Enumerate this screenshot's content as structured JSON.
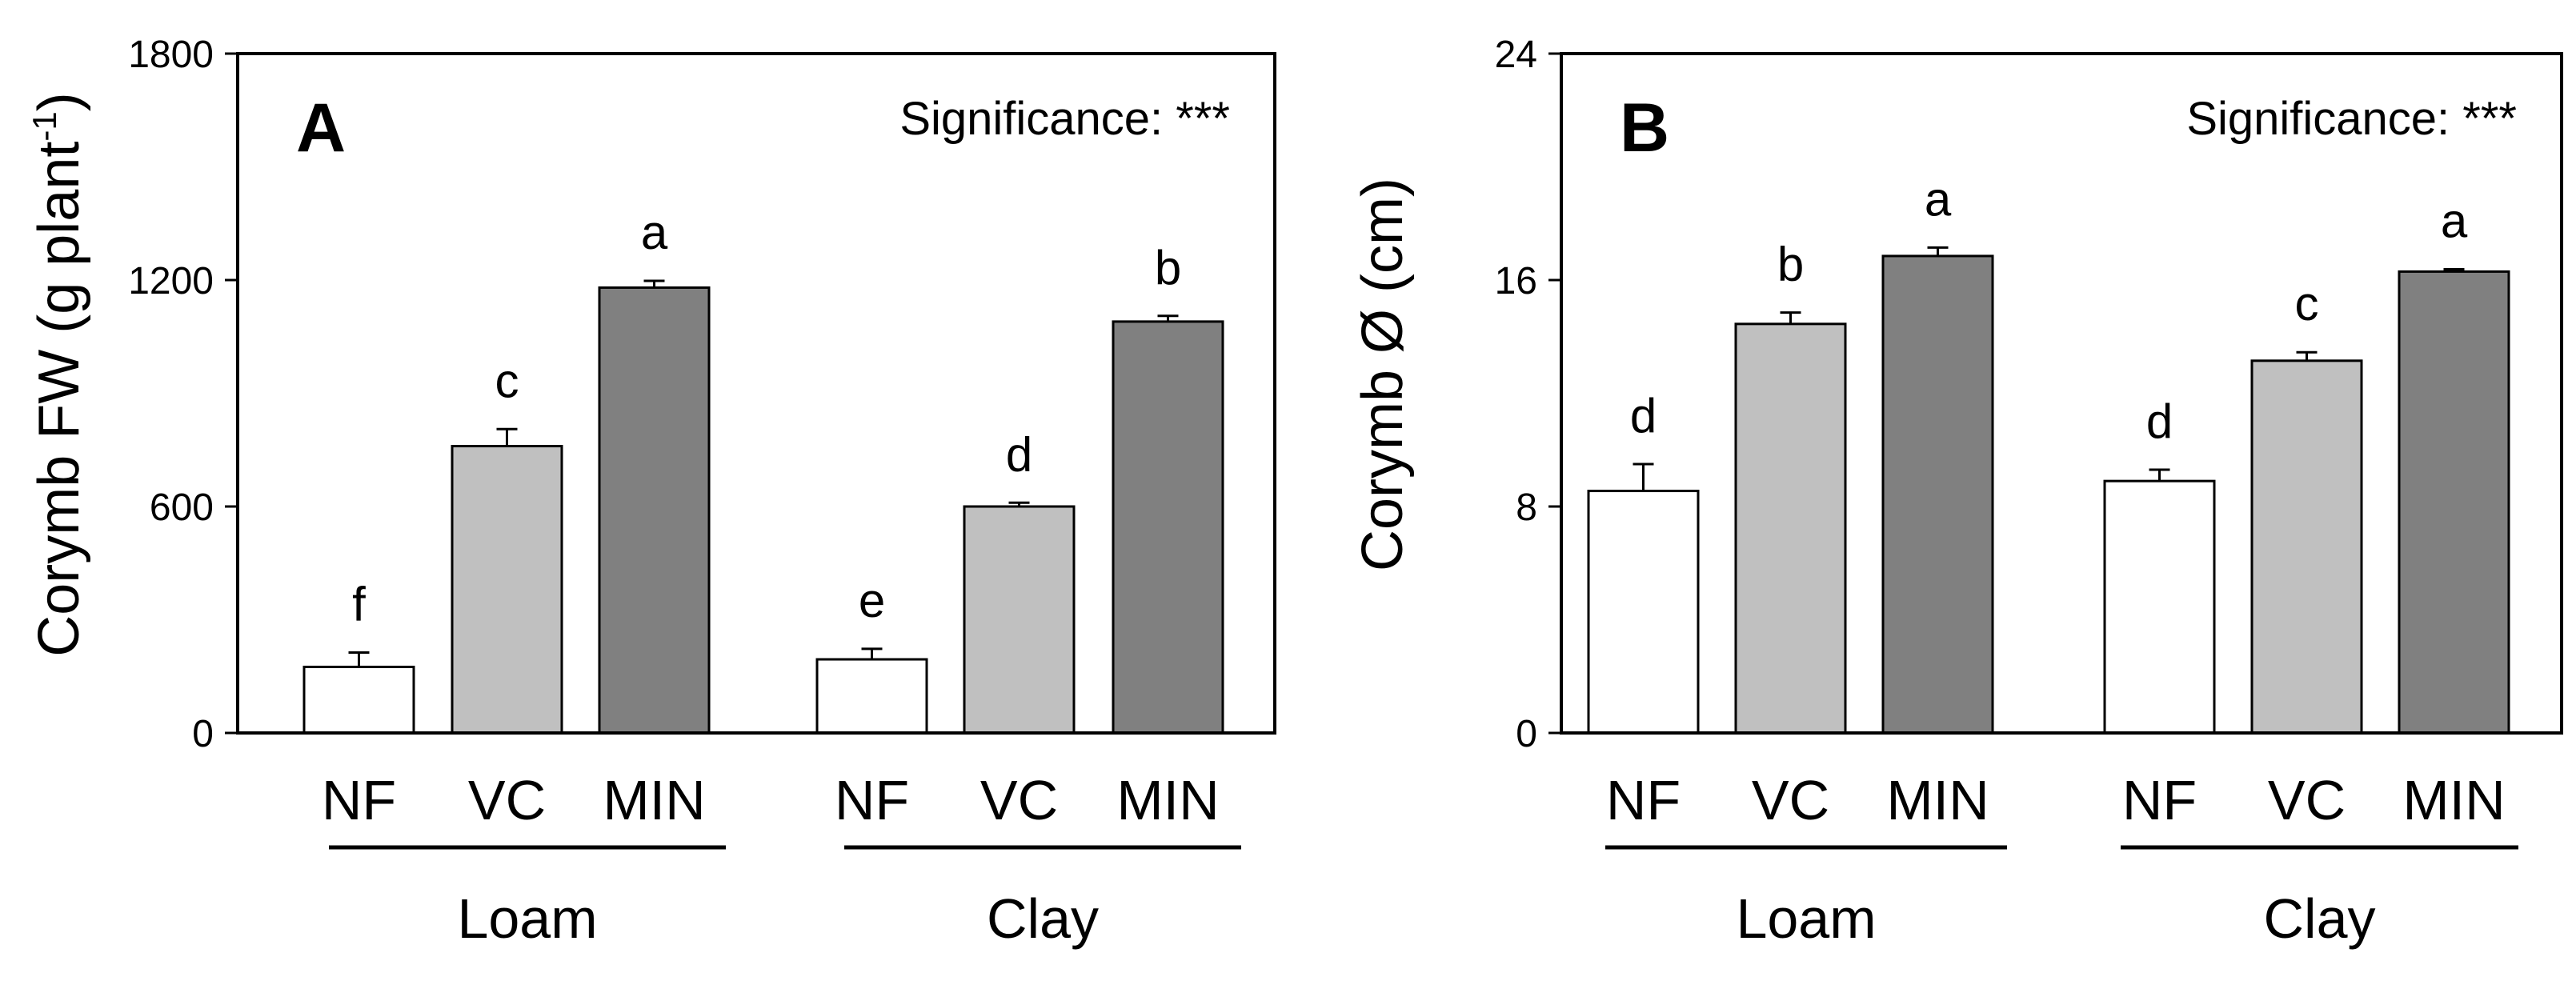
{
  "chart_data": [
    {
      "type": "bar",
      "panel_label": "A",
      "ylabel": "Corymb FW (g plant",
      "ylabel_sup": "-1",
      "ylabel_end": ")",
      "ylim": [
        0,
        1800
      ],
      "yticks": [
        "0",
        "600",
        "1200",
        "1800"
      ],
      "significance": "Significance: ***",
      "groups": [
        "Loam",
        "Clay"
      ],
      "categories": [
        "NF",
        "VC",
        "MIN"
      ],
      "series": [
        {
          "group": "Loam",
          "values": [
            175,
            760,
            1180
          ],
          "errors": [
            38,
            45,
            18
          ],
          "letters": [
            "f",
            "c",
            "a"
          ]
        },
        {
          "group": "Clay",
          "values": [
            195,
            600,
            1090
          ],
          "errors": [
            28,
            10,
            15
          ],
          "letters": [
            "e",
            "d",
            "b"
          ]
        }
      ],
      "colors": {
        "NF": "#ffffff",
        "VC": "#c0c0c0",
        "MIN": "#808080"
      }
    },
    {
      "type": "bar",
      "panel_label": "B",
      "ylabel": "Corymb Ø (cm)",
      "ylim": [
        0,
        24
      ],
      "yticks": [
        "0",
        "8",
        "16",
        "24"
      ],
      "significance": "Significance: ***",
      "groups": [
        "Loam",
        "Clay"
      ],
      "categories": [
        "NF",
        "VC",
        "MIN"
      ],
      "series": [
        {
          "group": "Loam",
          "values": [
            8.55,
            14.45,
            16.85
          ],
          "errors": [
            0.95,
            0.4,
            0.3
          ],
          "letters": [
            "d",
            "b",
            "a"
          ]
        },
        {
          "group": "Clay",
          "values": [
            8.9,
            13.15,
            16.3
          ],
          "errors": [
            0.4,
            0.3,
            0.08
          ],
          "letters": [
            "d",
            "c",
            "a"
          ]
        }
      ],
      "colors": {
        "NF": "#ffffff",
        "VC": "#c0c0c0",
        "MIN": "#808080"
      }
    }
  ]
}
